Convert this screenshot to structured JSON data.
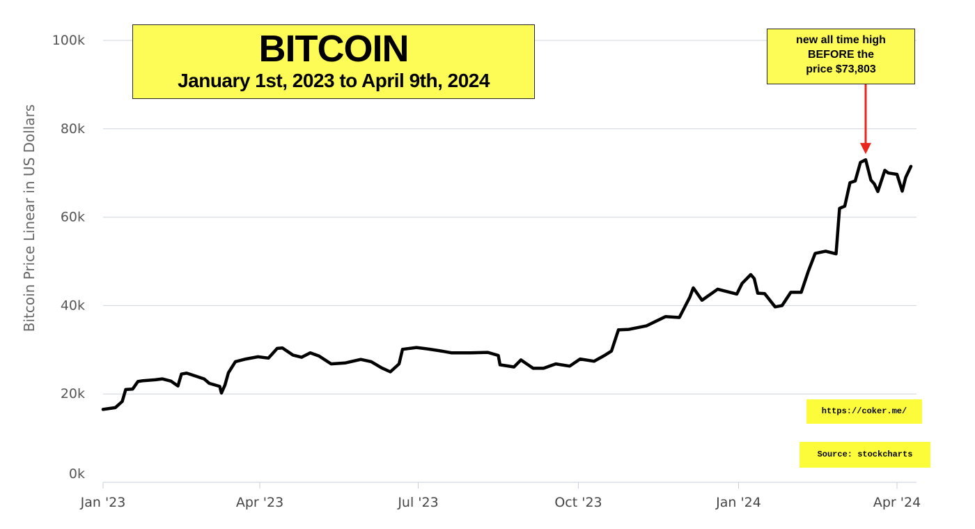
{
  "chart_data": {
    "type": "line",
    "title": "BITCOIN",
    "subtitle": "January 1st, 2023 to April 9th, 2024",
    "xlabel": "",
    "ylabel": "Bitcoin Price Linear in US Dollars",
    "y_scale": "linear",
    "ylim": [
      0,
      100000
    ],
    "yticks": [
      0,
      20000,
      40000,
      60000,
      80000,
      100000
    ],
    "ytick_labels": [
      "0k",
      "20k",
      "40k",
      "60k",
      "80k",
      "100k"
    ],
    "xlim": [
      "2023-01-01",
      "2024-04-09"
    ],
    "xticks": [
      "2023-01-01",
      "2023-04-01",
      "2023-07-01",
      "2023-10-01",
      "2024-01-01",
      "2024-04-01"
    ],
    "xtick_labels": [
      "Jan '23",
      "Apr '23",
      "Jul '23",
      "Oct '23",
      "Jan '24",
      "Apr '24"
    ],
    "grid": true,
    "series_color": "#000000",
    "series": [
      {
        "x": [
          "2023-01-01",
          "2023-01-08",
          "2023-01-12",
          "2023-01-14",
          "2023-01-18",
          "2023-01-21",
          "2023-01-24",
          "2023-01-31",
          "2023-02-04",
          "2023-02-09",
          "2023-02-13",
          "2023-02-15",
          "2023-02-18",
          "2023-02-22",
          "2023-02-28",
          "2023-03-03",
          "2023-03-09",
          "2023-03-10",
          "2023-03-12",
          "2023-03-14",
          "2023-03-18",
          "2023-03-24",
          "2023-03-31",
          "2023-04-06",
          "2023-04-11",
          "2023-04-14",
          "2023-04-20",
          "2023-04-25",
          "2023-04-30",
          "2023-05-05",
          "2023-05-12",
          "2023-05-20",
          "2023-05-29",
          "2023-06-04",
          "2023-06-10",
          "2023-06-15",
          "2023-06-20",
          "2023-06-22",
          "2023-06-30",
          "2023-07-06",
          "2023-07-13",
          "2023-07-20",
          "2023-07-31",
          "2023-08-10",
          "2023-08-16",
          "2023-08-17",
          "2023-08-25",
          "2023-08-29",
          "2023-09-05",
          "2023-09-11",
          "2023-09-18",
          "2023-09-26",
          "2023-10-02",
          "2023-10-10",
          "2023-10-16",
          "2023-10-20",
          "2023-10-24",
          "2023-10-30",
          "2023-11-09",
          "2023-11-20",
          "2023-11-28",
          "2023-12-04",
          "2023-12-06",
          "2023-12-11",
          "2023-12-20",
          "2023-12-31",
          "2024-01-03",
          "2024-01-08",
          "2024-01-10",
          "2024-01-12",
          "2024-01-16",
          "2024-01-22",
          "2024-01-26",
          "2024-01-31",
          "2024-02-06",
          "2024-02-10",
          "2024-02-14",
          "2024-02-20",
          "2024-02-26",
          "2024-02-28",
          "2024-03-02",
          "2024-03-05",
          "2024-03-08",
          "2024-03-11",
          "2024-03-14",
          "2024-03-17",
          "2024-03-19",
          "2024-03-21",
          "2024-03-25",
          "2024-03-27",
          "2024-04-01",
          "2024-04-04",
          "2024-04-06",
          "2024-04-09"
        ],
        "values": [
          16500,
          16900,
          18300,
          21000,
          21100,
          22800,
          23000,
          23200,
          23400,
          22900,
          21800,
          24500,
          24700,
          24200,
          23400,
          22400,
          21700,
          20200,
          22000,
          24800,
          27300,
          27900,
          28400,
          28100,
          30300,
          30400,
          28800,
          28300,
          29300,
          28600,
          26800,
          27000,
          27800,
          27300,
          25900,
          25000,
          26800,
          30100,
          30500,
          30200,
          29800,
          29300,
          29300,
          29400,
          28700,
          26600,
          26100,
          27700,
          25800,
          25800,
          26800,
          26300,
          27900,
          27400,
          28700,
          29700,
          34500,
          34600,
          35400,
          37500,
          37300,
          41900,
          44000,
          41200,
          43700,
          42600,
          45000,
          47000,
          46100,
          42800,
          42700,
          39700,
          40000,
          43000,
          43000,
          47700,
          51800,
          52300,
          51700,
          62000,
          62500,
          67800,
          68200,
          72400,
          73000,
          68400,
          67500,
          65800,
          70600,
          70000,
          69700,
          65900,
          69000,
          71500
        ]
      }
    ],
    "annotations": [
      {
        "text_lines": [
          "new all time high",
          "BEFORE the",
          "price $73,803"
        ],
        "arrow_target": {
          "x": "2024-03-14",
          "y": 73000
        },
        "arrow_color": "#e8261b"
      }
    ]
  },
  "labels": {
    "url": "https://coker.me/",
    "source": "Source: stockcharts"
  },
  "colors": {
    "highlight_box": "#fdfc56",
    "grid": "#cfd4dc",
    "arrow": "#e8261b"
  }
}
